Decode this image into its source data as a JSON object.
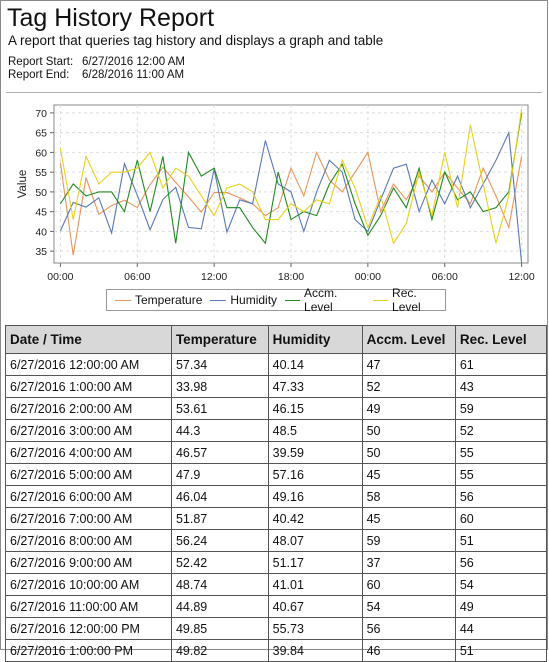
{
  "report": {
    "title": "Tag History Report",
    "subtitle": "A report that queries tag history and displays a graph and table",
    "start_label": "Report Start:",
    "start_value": "6/27/2016 12:00 AM",
    "end_label": "Report End:",
    "end_value": "6/28/2016 11:00 AM"
  },
  "chart_data": {
    "type": "line",
    "ylabel": "Value",
    "xlabel": "",
    "ylim": [
      32,
      72
    ],
    "yticks": [
      35,
      40,
      45,
      50,
      55,
      60,
      65,
      70
    ],
    "xlim": [
      -0.5,
      36.5
    ],
    "xticks": [
      {
        "hour": 0,
        "label": "00:00"
      },
      {
        "hour": 6,
        "label": "06:00"
      },
      {
        "hour": 12,
        "label": "12:00"
      },
      {
        "hour": 18,
        "label": "18:00"
      },
      {
        "hour": 24,
        "label": "00:00"
      },
      {
        "hour": 30,
        "label": "06:00"
      },
      {
        "hour": 36,
        "label": "12:00"
      }
    ],
    "grid": true,
    "legend_position": "bottom",
    "series": [
      {
        "name": "Temperature",
        "color": "#e8945a",
        "values": [
          57.34,
          33.98,
          53.61,
          44.3,
          46.57,
          47.9,
          46.04,
          51.87,
          56.24,
          52.42,
          48.74,
          44.89,
          49.85,
          49.82,
          48.5,
          47.0,
          44.0,
          46.0,
          56.0,
          49.0,
          60.0,
          53.0,
          50.0,
          55.0,
          60.0,
          45.0,
          52.0,
          48.0,
          54.0,
          50.0,
          55.0,
          51.0,
          47.0,
          56.0,
          49.0,
          41.0,
          59.0
        ]
      },
      {
        "name": "Humidity",
        "color": "#5a78b4",
        "values": [
          40.14,
          47.33,
          46.15,
          48.5,
          39.59,
          57.16,
          49.16,
          40.42,
          48.07,
          51.17,
          41.01,
          40.67,
          55.73,
          39.84,
          48.0,
          47.0,
          63.0,
          52.0,
          50.0,
          40.0,
          50.0,
          58.0,
          55.0,
          43.0,
          40.0,
          48.0,
          56.0,
          57.0,
          45.0,
          53.0,
          47.0,
          54.0,
          46.0,
          52.0,
          58.0,
          65.0,
          32.0
        ]
      },
      {
        "name": "Accm. Level",
        "color": "#1f8a1f",
        "values": [
          47,
          52,
          49,
          50,
          50,
          45,
          58,
          45,
          59,
          37,
          60,
          54,
          56,
          46,
          46,
          41,
          37,
          55,
          43,
          45,
          44,
          52,
          57,
          47,
          39,
          44,
          51,
          46,
          56,
          43,
          55,
          48,
          50,
          45,
          46,
          50,
          70
        ]
      },
      {
        "name": "Rec. Level",
        "color": "#e6d21a",
        "values": [
          61,
          43,
          59,
          52,
          55,
          55,
          56,
          60,
          51,
          56,
          54,
          49,
          44,
          51,
          52,
          50,
          43,
          43,
          47,
          45,
          48,
          47,
          58,
          51,
          41,
          49,
          37,
          42,
          55,
          44,
          60,
          46,
          67,
          52,
          37,
          49,
          71
        ]
      }
    ]
  },
  "table": {
    "headers": [
      "Date / Time",
      "Temperature",
      "Humidity",
      "Accm. Level",
      "Rec. Level"
    ],
    "rows": [
      [
        "6/27/2016 12:00:00 AM",
        "57.34",
        "40.14",
        "47",
        "61"
      ],
      [
        "6/27/2016 1:00:00 AM",
        "33.98",
        "47.33",
        "52",
        "43"
      ],
      [
        "6/27/2016 2:00:00 AM",
        "53.61",
        "46.15",
        "49",
        "59"
      ],
      [
        "6/27/2016 3:00:00 AM",
        "44.3",
        "48.5",
        "50",
        "52"
      ],
      [
        "6/27/2016 4:00:00 AM",
        "46.57",
        "39.59",
        "50",
        "55"
      ],
      [
        "6/27/2016 5:00:00 AM",
        "47.9",
        "57.16",
        "45",
        "55"
      ],
      [
        "6/27/2016 6:00:00 AM",
        "46.04",
        "49.16",
        "58",
        "56"
      ],
      [
        "6/27/2016 7:00:00 AM",
        "51.87",
        "40.42",
        "45",
        "60"
      ],
      [
        "6/27/2016 8:00:00 AM",
        "56.24",
        "48.07",
        "59",
        "51"
      ],
      [
        "6/27/2016 9:00:00 AM",
        "52.42",
        "51.17",
        "37",
        "56"
      ],
      [
        "6/27/2016 10:00:00 AM",
        "48.74",
        "41.01",
        "60",
        "54"
      ],
      [
        "6/27/2016 11:00:00 AM",
        "44.89",
        "40.67",
        "54",
        "49"
      ],
      [
        "6/27/2016 12:00:00 PM",
        "49.85",
        "55.73",
        "56",
        "44"
      ],
      [
        "6/27/2016 1:00:00 PM",
        "49.82",
        "39.84",
        "46",
        "51"
      ]
    ]
  }
}
